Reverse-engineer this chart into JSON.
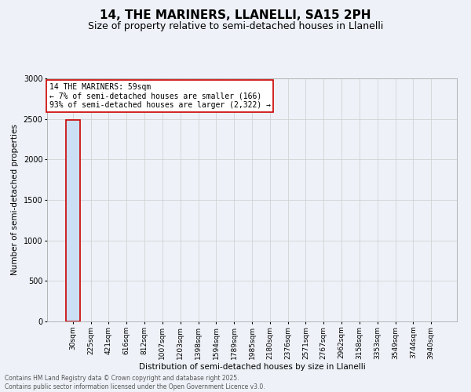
{
  "title": "14, THE MARINERS, LLANELLI, SA15 2PH",
  "subtitle": "Size of property relative to semi-detached houses in Llanelli",
  "xlabel": "Distribution of semi-detached houses by size in Llanelli",
  "ylabel": "Number of semi-detached properties",
  "annotation_line1": "14 THE MARINERS: 59sqm",
  "annotation_line2": "← 7% of semi-detached houses are smaller (166)",
  "annotation_line3": "93% of semi-detached houses are larger (2,322) →",
  "footer_line1": "Contains HM Land Registry data © Crown copyright and database right 2025.",
  "footer_line2": "Contains public sector information licensed under the Open Government Licence v3.0.",
  "bar_labels": [
    "30sqm",
    "225sqm",
    "421sqm",
    "616sqm",
    "812sqm",
    "1007sqm",
    "1203sqm",
    "1398sqm",
    "1594sqm",
    "1789sqm",
    "1985sqm",
    "2180sqm",
    "2376sqm",
    "2571sqm",
    "2767sqm",
    "2962sqm",
    "3158sqm",
    "3353sqm",
    "3549sqm",
    "3744sqm",
    "3940sqm"
  ],
  "bar_values": [
    2488,
    0,
    0,
    0,
    0,
    0,
    0,
    0,
    0,
    0,
    0,
    0,
    0,
    0,
    0,
    0,
    0,
    0,
    0,
    0,
    0
  ],
  "bar_color": "#cce0f5",
  "bar_edge_color": "#5b9bd5",
  "highlight_bar_index": 0,
  "highlight_edge_color": "#cc0000",
  "ylim": [
    0,
    3000
  ],
  "yticks": [
    0,
    500,
    1000,
    1500,
    2000,
    2500,
    3000
  ],
  "grid_color": "#cccccc",
  "bg_color": "#eef2f8",
  "annotation_box_color": "#ffffff",
  "annotation_box_edge": "#cc0000",
  "title_fontsize": 11,
  "subtitle_fontsize": 9,
  "tick_fontsize": 6.5,
  "ylabel_fontsize": 7.5,
  "xlabel_fontsize": 7.5,
  "annotation_fontsize": 7,
  "footer_fontsize": 5.5
}
